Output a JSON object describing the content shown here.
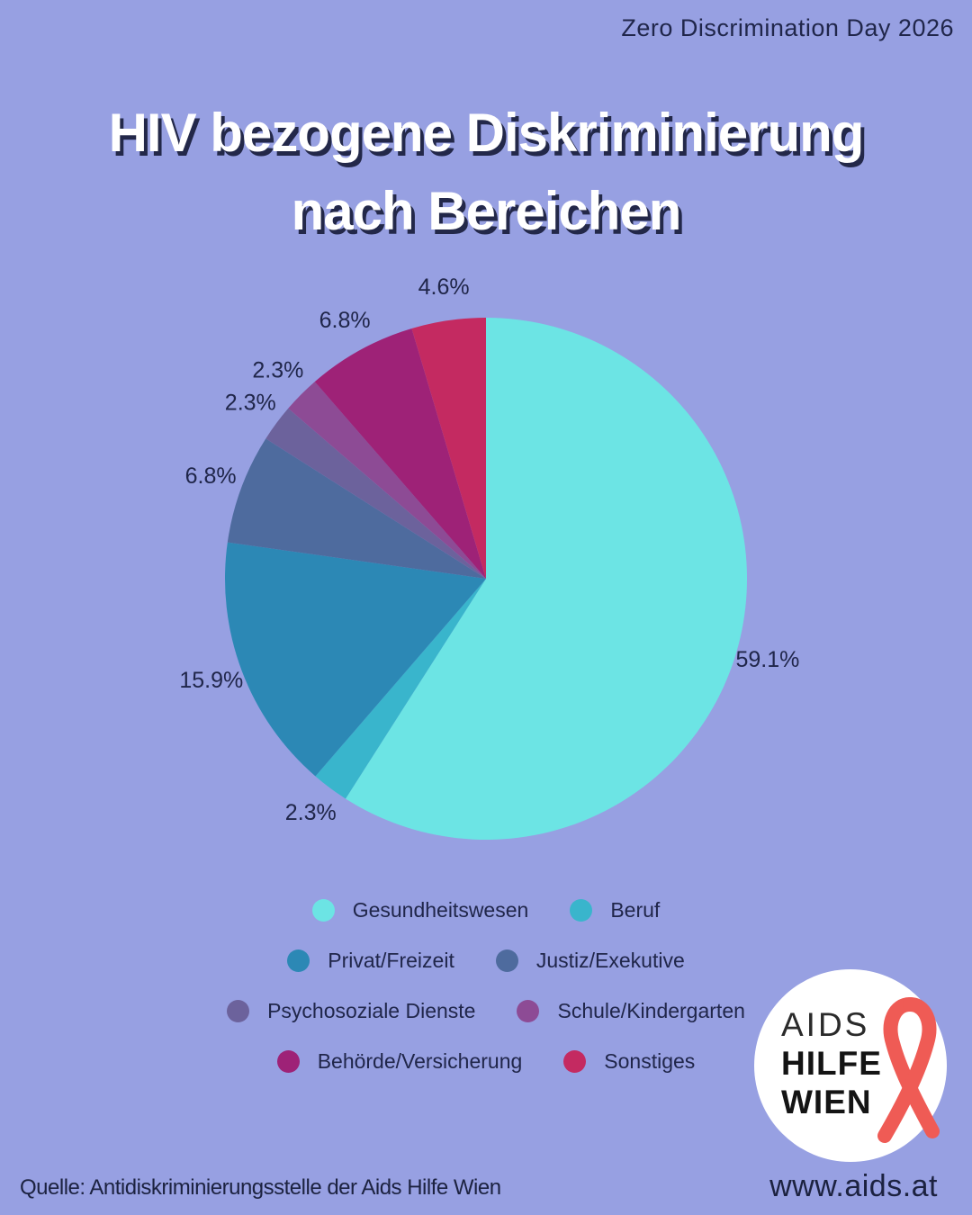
{
  "header": {
    "event": "Zero Discrimination Day 2026"
  },
  "title": {
    "line1": "HIV bezogene Diskriminierung",
    "line2": "nach Bereichen"
  },
  "chart_data": {
    "type": "pie",
    "title": "HIV bezogene Diskriminierung nach Bereichen",
    "start_angle_deg": 0,
    "direction": "clockwise",
    "legend_position": "bottom",
    "slices": [
      {
        "label": "Gesundheitswesen",
        "value": 59.1,
        "display": "59.1%",
        "color": "#6ce4e4"
      },
      {
        "label": "Beruf",
        "value": 2.3,
        "display": "2.3%",
        "color": "#39b5cc"
      },
      {
        "label": "Privat/Freizeit",
        "value": 15.9,
        "display": "15.9%",
        "color": "#2c88b5"
      },
      {
        "label": "Justiz/Exekutive",
        "value": 6.8,
        "display": "6.8%",
        "color": "#4e6b9e"
      },
      {
        "label": "Psychosoziale Dienste",
        "value": 2.3,
        "display": "2.3%",
        "color": "#6c629c"
      },
      {
        "label": "Schule/Kindergarten",
        "value": 2.3,
        "display": "2.3%",
        "color": "#8d4b95"
      },
      {
        "label": "Behörde/Versicherung",
        "value": 6.8,
        "display": "6.8%",
        "color": "#9e2277"
      },
      {
        "label": "Sonstiges",
        "value": 4.6,
        "display": "4.6%",
        "color": "#c42a61"
      }
    ],
    "legend_rows": [
      [
        0,
        1
      ],
      [
        2,
        3
      ],
      [
        4,
        5
      ],
      [
        6,
        7
      ]
    ]
  },
  "logo": {
    "line1": "AIDS",
    "line2": "HILFE",
    "line3": "WIEN",
    "ribbon_color": "#ef5b55"
  },
  "footer": {
    "source": "Quelle: Antidiskriminierungsstelle der Aids Hilfe Wien",
    "website": "www.aids.at"
  },
  "colors": {
    "background": "#97a0e2",
    "text": "#20264a",
    "title": "#ffffff",
    "title_shadow": "#232849"
  }
}
